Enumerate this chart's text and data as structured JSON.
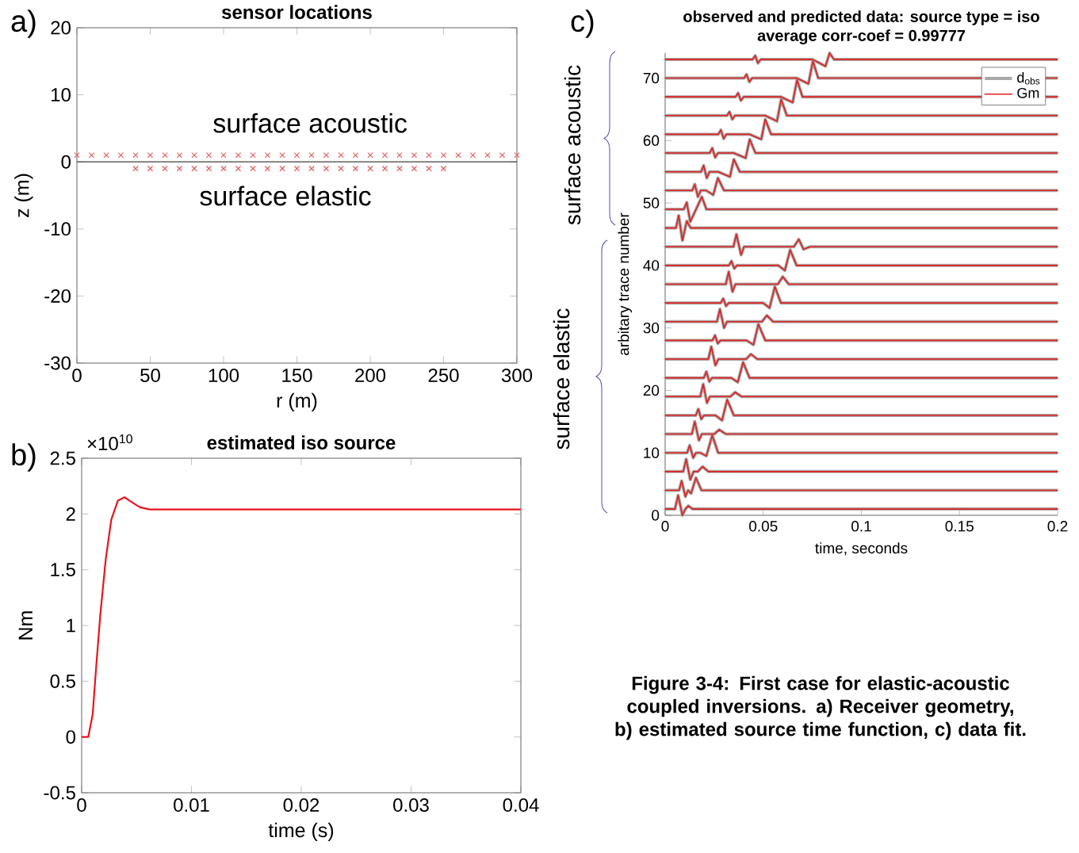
{
  "chart_data": [
    {
      "type": "scatter",
      "title": "sensor locations",
      "xlabel": "r (m)",
      "ylabel": "z (m)",
      "marker": "cross",
      "xlim": [
        0,
        300
      ],
      "xticks": [
        0,
        50,
        100,
        150,
        200,
        250,
        300
      ],
      "ylim": [
        -30,
        20
      ],
      "yticks": [
        -30,
        -20,
        -10,
        0,
        10,
        20
      ],
      "ref_lines": [
        {
          "axis": "y",
          "value": 0,
          "color": "#404040"
        }
      ],
      "annotations": [
        "a)",
        "surface acoustic",
        "surface elastic"
      ],
      "series": [
        {
          "color": "#e06060",
          "x": [
            0,
            10,
            20,
            30,
            40,
            50,
            60,
            70,
            80,
            90,
            100,
            110,
            120,
            130,
            140,
            150,
            160,
            170,
            180,
            190,
            200,
            210,
            220,
            230,
            240,
            250,
            260,
            270,
            280,
            290,
            300
          ],
          "values": [
            1,
            1,
            1,
            1,
            1,
            1,
            1,
            1,
            1,
            1,
            1,
            1,
            1,
            1,
            1,
            1,
            1,
            1,
            1,
            1,
            1,
            1,
            1,
            1,
            1,
            1,
            1,
            1,
            1,
            1,
            1
          ]
        },
        {
          "color": "#e06060",
          "x": [
            40,
            50,
            60,
            70,
            80,
            90,
            100,
            110,
            120,
            130,
            140,
            150,
            160,
            170,
            180,
            190,
            200,
            210,
            220,
            230,
            240,
            250
          ],
          "values": [
            -1,
            -1,
            -1,
            -1,
            -1,
            -1,
            -1,
            -1,
            -1,
            -1,
            -1,
            -1,
            -1,
            -1,
            -1,
            -1,
            -1,
            -1,
            -1,
            -1,
            -1,
            -1
          ]
        }
      ]
    },
    {
      "type": "line",
      "title": "estimated iso source",
      "xlabel": "time (s)",
      "ylabel": "Nm",
      "xlim": [
        0,
        0.04
      ],
      "xticks": [
        0,
        0.01,
        0.02,
        0.03,
        0.04
      ],
      "ylim": [
        -0.5,
        2.5
      ],
      "yticks": [
        -0.5,
        0,
        0.5,
        1,
        1.5,
        2,
        2.5
      ],
      "annotations": [
        "b)",
        "×10$^{10}$"
      ],
      "series": [
        {
          "color": "#e8141c",
          "x": [
            0,
            0.0006,
            0.001,
            0.0013,
            0.0017,
            0.0022,
            0.0027,
            0.0033,
            0.0039,
            0.0045,
            0.0053,
            0.0062,
            0.04
          ],
          "values": [
            0,
            0,
            0.2,
            0.6,
            1.1,
            1.6,
            1.95,
            2.12,
            2.15,
            2.11,
            2.06,
            2.04,
            2.04
          ]
        }
      ]
    },
    {
      "type": "line",
      "title": "observed and predicted data: source type = iso",
      "subtitle": "average corr-coef = 0.99777",
      "xlabel": "time, seconds",
      "ylabel": "arbitary trace number",
      "xlim": [
        0,
        0.2
      ],
      "xticks": [
        0,
        0.05,
        0.1,
        0.15,
        0.2
      ],
      "ylim": [
        0,
        74
      ],
      "yticks": [
        0,
        10,
        20,
        30,
        40,
        50,
        60,
        70
      ],
      "legend": "top right",
      "annotations": [
        "c)",
        "surface acoustic",
        "surface elastic",
        "Figure 3-4: First case for elastic-acoustic coupled inversions. a) Receiver geometry, b) estimated source time function, c) data fit."
      ],
      "series": [
        {
          "name": "d$_{obs}$",
          "color": "#a8a8a8",
          "x": [
            0,
            0.005,
            0.0066,
            0.0088,
            0.0103,
            0.0118,
            0.014,
            0.2,
            0,
            0.0071,
            0.0084,
            0.0103,
            0.0117,
            0.0132,
            0.0157,
            0.0185,
            0.2,
            0,
            0.0092,
            0.0107,
            0.0128,
            0.0145,
            0.0166,
            0.0191,
            0.022,
            0.2,
            0,
            0.0112,
            0.0125,
            0.0143,
            0.0157,
            0.018,
            0.021,
            0.024,
            0.027,
            0.2,
            0,
            0.0136,
            0.0151,
            0.0172,
            0.0187,
            0.025,
            0.0275,
            0.031,
            0.2,
            0,
            0.0156,
            0.0169,
            0.0184,
            0.0198,
            0.0256,
            0.029,
            0.0316,
            0.035,
            0.2,
            0,
            0.0179,
            0.0194,
            0.0213,
            0.0228,
            0.0332,
            0.0357,
            0.039,
            0.2,
            0,
            0.0197,
            0.021,
            0.0225,
            0.0239,
            0.0337,
            0.037,
            0.0397,
            0.043,
            0.2,
            0,
            0.022,
            0.0235,
            0.0256,
            0.0271,
            0.0412,
            0.0437,
            0.047,
            0.2,
            0,
            0.0241,
            0.0254,
            0.0268,
            0.0282,
            0.0415,
            0.045,
            0.0475,
            0.051,
            0.2,
            0,
            0.0264,
            0.0279,
            0.03,
            0.0315,
            0.0493,
            0.0518,
            0.055,
            0.2,
            0,
            0.0283,
            0.0296,
            0.031,
            0.0324,
            0.0499,
            0.0532,
            0.0559,
            0.059,
            0.2,
            0,
            0.0309,
            0.0324,
            0.0343,
            0.0358,
            0.0574,
            0.0599,
            0.063,
            0.2,
            0,
            0.0325,
            0.0338,
            0.0352,
            0.0366,
            0.0577,
            0.061,
            0.0637,
            0.067,
            0.2,
            0,
            0.0348,
            0.0363,
            0.0387,
            0.0402,
            0.0656,
            0.0681,
            0.0705,
            0.074,
            0.2,
            0,
            0.0055,
            0.0069,
            0.0088,
            0.011,
            0.013,
            0.2,
            0,
            0.0095,
            0.011,
            0.0128,
            0.0187,
            0.021,
            0.2,
            0,
            0.0138,
            0.0151,
            0.0167,
            0.0181,
            0.021,
            0.0245,
            0.0269,
            0.03,
            0.2,
            0,
            0.0183,
            0.0196,
            0.0212,
            0.0226,
            0.027,
            0.033,
            0.035,
            0.038,
            0.2,
            0,
            0.0227,
            0.024,
            0.0255,
            0.0269,
            0.035,
            0.041,
            0.0431,
            0.046,
            0.2,
            0,
            0.0271,
            0.0284,
            0.0298,
            0.0312,
            0.043,
            0.049,
            0.051,
            0.054,
            0.2,
            0,
            0.0315,
            0.0328,
            0.0342,
            0.0356,
            0.051,
            0.057,
            0.0591,
            0.062,
            0.2,
            0,
            0.0359,
            0.0372,
            0.0386,
            0.04,
            0.059,
            0.065,
            0.0672,
            0.07,
            0.2,
            0,
            0.0402,
            0.0415,
            0.0429,
            0.0443,
            0.067,
            0.073,
            0.0753,
            0.078,
            0.2,
            0,
            0.0446,
            0.0459,
            0.0473,
            0.0487,
            0.075,
            0.0817,
            0.0838,
            0.086,
            0.2
          ],
          "values": [
            1,
            1,
            3.2,
            0,
            1,
            1.5,
            1,
            1,
            4,
            4,
            5.5,
            3,
            4,
            3.5,
            6,
            4,
            4,
            7,
            7,
            9,
            5.7,
            7,
            7,
            7.8,
            7,
            7,
            10,
            10,
            11.2,
            9.2,
            10,
            10,
            9.5,
            12.8,
            10,
            10,
            13,
            13,
            15,
            12,
            13,
            13,
            13.7,
            13,
            13,
            16,
            16,
            17,
            15.4,
            16,
            16,
            15.2,
            18.5,
            16,
            16,
            19,
            19,
            21,
            18,
            19,
            19,
            19.7,
            19,
            19,
            22,
            22,
            23,
            21.4,
            22,
            22,
            21.3,
            24.5,
            22,
            22,
            25,
            25,
            27,
            24,
            25,
            25,
            25.8,
            25,
            25,
            28,
            28,
            28.8,
            27.5,
            28,
            28,
            27.3,
            30.6,
            28,
            28,
            31,
            31,
            33,
            30,
            31,
            31,
            32,
            31,
            31,
            34,
            34,
            34.7,
            33.5,
            34,
            34,
            33.2,
            36.6,
            34,
            34,
            37,
            37,
            39,
            35.8,
            37,
            37,
            38.2,
            37,
            37,
            40,
            40,
            40.7,
            39.5,
            40,
            40,
            39.2,
            42.5,
            40,
            40,
            43,
            43,
            45,
            41.7,
            43,
            43,
            44.2,
            42.6,
            43,
            43,
            46,
            46,
            48,
            44,
            47.1,
            46,
            46,
            49,
            49,
            50.1,
            47,
            51,
            49,
            49,
            52,
            52,
            53,
            51,
            52,
            52,
            51.3,
            54,
            52,
            52,
            55,
            55,
            56,
            54,
            55,
            55,
            54.2,
            57,
            55,
            55,
            58,
            58,
            58.8,
            57.3,
            58,
            58,
            57.2,
            60.2,
            58,
            58,
            61,
            61,
            61.7,
            60.3,
            61,
            61,
            60.2,
            63.4,
            61,
            61,
            64,
            64,
            64.6,
            63.4,
            64,
            64,
            63.1,
            66.6,
            64,
            64,
            67,
            67,
            67.6,
            66.4,
            67,
            67,
            66.1,
            69.7,
            67,
            67,
            70,
            70,
            70.6,
            69.4,
            70,
            70,
            69.1,
            72.7,
            70,
            70,
            73,
            73,
            73.6,
            72.4,
            73,
            73,
            71.9,
            74,
            73,
            73
          ]
        },
        {
          "name": "Gm",
          "color": "#e02020",
          "x": [
            0,
            0.005,
            0.0066,
            0.0088,
            0.0103,
            0.0118,
            0.014,
            0.2,
            0,
            0.0071,
            0.0084,
            0.0103,
            0.0117,
            0.0132,
            0.0157,
            0.0185,
            0.2,
            0,
            0.0092,
            0.0107,
            0.0128,
            0.0145,
            0.0166,
            0.0191,
            0.022,
            0.2,
            0,
            0.0112,
            0.0125,
            0.0143,
            0.0157,
            0.018,
            0.021,
            0.024,
            0.027,
            0.2,
            0,
            0.0136,
            0.0151,
            0.0172,
            0.0187,
            0.025,
            0.0275,
            0.031,
            0.2,
            0,
            0.0156,
            0.0169,
            0.0184,
            0.0198,
            0.0256,
            0.029,
            0.0316,
            0.035,
            0.2,
            0,
            0.0179,
            0.0194,
            0.0213,
            0.0228,
            0.0332,
            0.0357,
            0.039,
            0.2,
            0,
            0.0197,
            0.021,
            0.0225,
            0.0239,
            0.0337,
            0.037,
            0.0397,
            0.043,
            0.2,
            0,
            0.022,
            0.0235,
            0.0256,
            0.0271,
            0.0412,
            0.0437,
            0.047,
            0.2,
            0,
            0.0241,
            0.0254,
            0.0268,
            0.0282,
            0.0415,
            0.045,
            0.0475,
            0.051,
            0.2,
            0,
            0.0264,
            0.0279,
            0.03,
            0.0315,
            0.0493,
            0.0518,
            0.055,
            0.2,
            0,
            0.0283,
            0.0296,
            0.031,
            0.0324,
            0.0499,
            0.0532,
            0.0559,
            0.059,
            0.2,
            0,
            0.0309,
            0.0324,
            0.0343,
            0.0358,
            0.0574,
            0.0599,
            0.063,
            0.2,
            0,
            0.0325,
            0.0338,
            0.0352,
            0.0366,
            0.0577,
            0.061,
            0.0637,
            0.067,
            0.2,
            0,
            0.0348,
            0.0363,
            0.0387,
            0.0402,
            0.0656,
            0.0681,
            0.0705,
            0.074,
            0.2,
            0,
            0.0055,
            0.0069,
            0.0088,
            0.011,
            0.013,
            0.2,
            0,
            0.0095,
            0.011,
            0.0128,
            0.0187,
            0.021,
            0.2,
            0,
            0.0138,
            0.0151,
            0.0167,
            0.0181,
            0.021,
            0.0245,
            0.0269,
            0.03,
            0.2,
            0,
            0.0183,
            0.0196,
            0.0212,
            0.0226,
            0.027,
            0.033,
            0.035,
            0.038,
            0.2,
            0,
            0.0227,
            0.024,
            0.0255,
            0.0269,
            0.035,
            0.041,
            0.0431,
            0.046,
            0.2,
            0,
            0.0271,
            0.0284,
            0.0298,
            0.0312,
            0.043,
            0.049,
            0.051,
            0.054,
            0.2,
            0,
            0.0315,
            0.0328,
            0.0342,
            0.0356,
            0.051,
            0.057,
            0.0591,
            0.062,
            0.2,
            0,
            0.0359,
            0.0372,
            0.0386,
            0.04,
            0.059,
            0.065,
            0.0672,
            0.07,
            0.2,
            0,
            0.0402,
            0.0415,
            0.0429,
            0.0443,
            0.067,
            0.073,
            0.0753,
            0.078,
            0.2,
            0,
            0.0446,
            0.0459,
            0.0473,
            0.0487,
            0.075,
            0.0817,
            0.0838,
            0.086,
            0.2
          ],
          "values": [
            1,
            1,
            3.2,
            0,
            1,
            1.5,
            1,
            1,
            4,
            4,
            5.5,
            3,
            4,
            3.5,
            6,
            4,
            4,
            7,
            7,
            9,
            5.7,
            7,
            7,
            7.8,
            7,
            7,
            10,
            10,
            11.2,
            9.2,
            10,
            10,
            9.5,
            12.8,
            10,
            10,
            13,
            13,
            15,
            12,
            13,
            13,
            13.7,
            13,
            13,
            16,
            16,
            17,
            15.4,
            16,
            16,
            15.2,
            18.5,
            16,
            16,
            19,
            19,
            21,
            18,
            19,
            19,
            19.7,
            19,
            19,
            22,
            22,
            23,
            21.4,
            22,
            22,
            21.3,
            24.5,
            22,
            22,
            25,
            25,
            27,
            24,
            25,
            25,
            25.8,
            25,
            25,
            28,
            28,
            28.8,
            27.5,
            28,
            28,
            27.3,
            30.6,
            28,
            28,
            31,
            31,
            33,
            30,
            31,
            31,
            32,
            31,
            31,
            34,
            34,
            34.7,
            33.5,
            34,
            34,
            33.2,
            36.6,
            34,
            34,
            37,
            37,
            39,
            35.8,
            37,
            37,
            38.2,
            37,
            37,
            40,
            40,
            40.7,
            39.5,
            40,
            40,
            39.2,
            42.5,
            40,
            40,
            43,
            43,
            45,
            41.7,
            43,
            43,
            44.2,
            42.6,
            43,
            43,
            46,
            46,
            48,
            44,
            47.1,
            46,
            46,
            49,
            49,
            50.1,
            47,
            51,
            49,
            49,
            52,
            52,
            53,
            51,
            52,
            52,
            51.3,
            54,
            52,
            52,
            55,
            55,
            56,
            54,
            55,
            55,
            54.2,
            57,
            55,
            55,
            58,
            58,
            58.8,
            57.3,
            58,
            58,
            57.2,
            60.2,
            58,
            58,
            61,
            61,
            61.7,
            60.3,
            61,
            61,
            60.2,
            63.4,
            61,
            61,
            64,
            64,
            64.6,
            63.4,
            64,
            64,
            63.1,
            66.6,
            64,
            64,
            67,
            67,
            67.6,
            66.4,
            67,
            67,
            66.1,
            69.7,
            67,
            67,
            70,
            70,
            70.6,
            69.4,
            70,
            70,
            69.1,
            72.7,
            70,
            70,
            73,
            73,
            73.6,
            72.4,
            73,
            73,
            71.9,
            74,
            73,
            73
          ]
        }
      ]
    }
  ]
}
